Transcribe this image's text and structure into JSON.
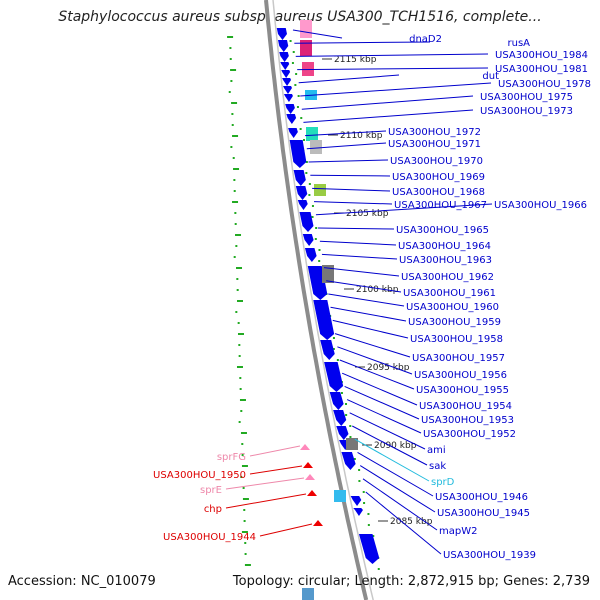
{
  "title": "Staphylococcus aureus subsp. aureus USA300_TCH1516, complete...",
  "footer": {
    "accession": "Accession: NC_010079",
    "summary": "Topology: circular; Length: 2,872,915 bp; Genes: 2,739"
  },
  "colors": {
    "backbone": "#8c8c8c",
    "gene_blue": "#0000ee",
    "label_blue": "#0000cc",
    "label_red": "#dd0000",
    "label_pink": "#ee88aa",
    "label_cyan": "#22bbdd",
    "tick_green": "#22aa22"
  },
  "scale_ticks": [
    "2115 kbp",
    "2110 kbp",
    "2105 kbp",
    "2100 kbp",
    "2095 kbp",
    "2090 kbp",
    "2085 kbp"
  ],
  "right_labels": [
    {
      "text": "dnaD2",
      "color": "blue"
    },
    {
      "text": "rusA",
      "color": "blue"
    },
    {
      "text": "USA300HOU_1984",
      "color": "blue"
    },
    {
      "text": "USA300HOU_1981",
      "color": "blue"
    },
    {
      "text": "dut",
      "color": "blue"
    },
    {
      "text": "USA300HOU_1978",
      "color": "blue"
    },
    {
      "text": "USA300HOU_1975",
      "color": "blue"
    },
    {
      "text": "USA300HOU_1973",
      "color": "blue"
    },
    {
      "text": "USA300HOU_1972",
      "color": "blue"
    },
    {
      "text": "USA300HOU_1971",
      "color": "blue"
    },
    {
      "text": "USA300HOU_1970",
      "color": "blue"
    },
    {
      "text": "USA300HOU_1969",
      "color": "blue"
    },
    {
      "text": "USA300HOU_1968",
      "color": "blue"
    },
    {
      "text": "USA300HOU_1967",
      "color": "blue"
    },
    {
      "text": "USA300HOU_1966",
      "color": "blue"
    },
    {
      "text": "USA300HOU_1965",
      "color": "blue"
    },
    {
      "text": "USA300HOU_1964",
      "color": "blue"
    },
    {
      "text": "USA300HOU_1963",
      "color": "blue"
    },
    {
      "text": "USA300HOU_1962",
      "color": "blue"
    },
    {
      "text": "USA300HOU_1961",
      "color": "blue"
    },
    {
      "text": "USA300HOU_1960",
      "color": "blue"
    },
    {
      "text": "USA300HOU_1959",
      "color": "blue"
    },
    {
      "text": "USA300HOU_1958",
      "color": "blue"
    },
    {
      "text": "USA300HOU_1957",
      "color": "blue"
    },
    {
      "text": "USA300HOU_1956",
      "color": "blue"
    },
    {
      "text": "USA300HOU_1955",
      "color": "blue"
    },
    {
      "text": "USA300HOU_1954",
      "color": "blue"
    },
    {
      "text": "USA300HOU_1953",
      "color": "blue"
    },
    {
      "text": "USA300HOU_1952",
      "color": "blue"
    },
    {
      "text": "ami",
      "color": "blue"
    },
    {
      "text": "sak",
      "color": "blue"
    },
    {
      "text": "sprD",
      "color": "cyan"
    },
    {
      "text": "USA300HOU_1946",
      "color": "blue"
    },
    {
      "text": "USA300HOU_1945",
      "color": "blue"
    },
    {
      "text": "mapW2",
      "color": "blue"
    },
    {
      "text": "USA300HOU_1939",
      "color": "blue"
    }
  ],
  "left_labels": [
    {
      "text": "sprFG",
      "color": "pink"
    },
    {
      "text": "USA300HOU_1950",
      "color": "red"
    },
    {
      "text": "sprE",
      "color": "pink"
    },
    {
      "text": "chp",
      "color": "red"
    },
    {
      "text": "USA300HOU_1944",
      "color": "red"
    }
  ]
}
